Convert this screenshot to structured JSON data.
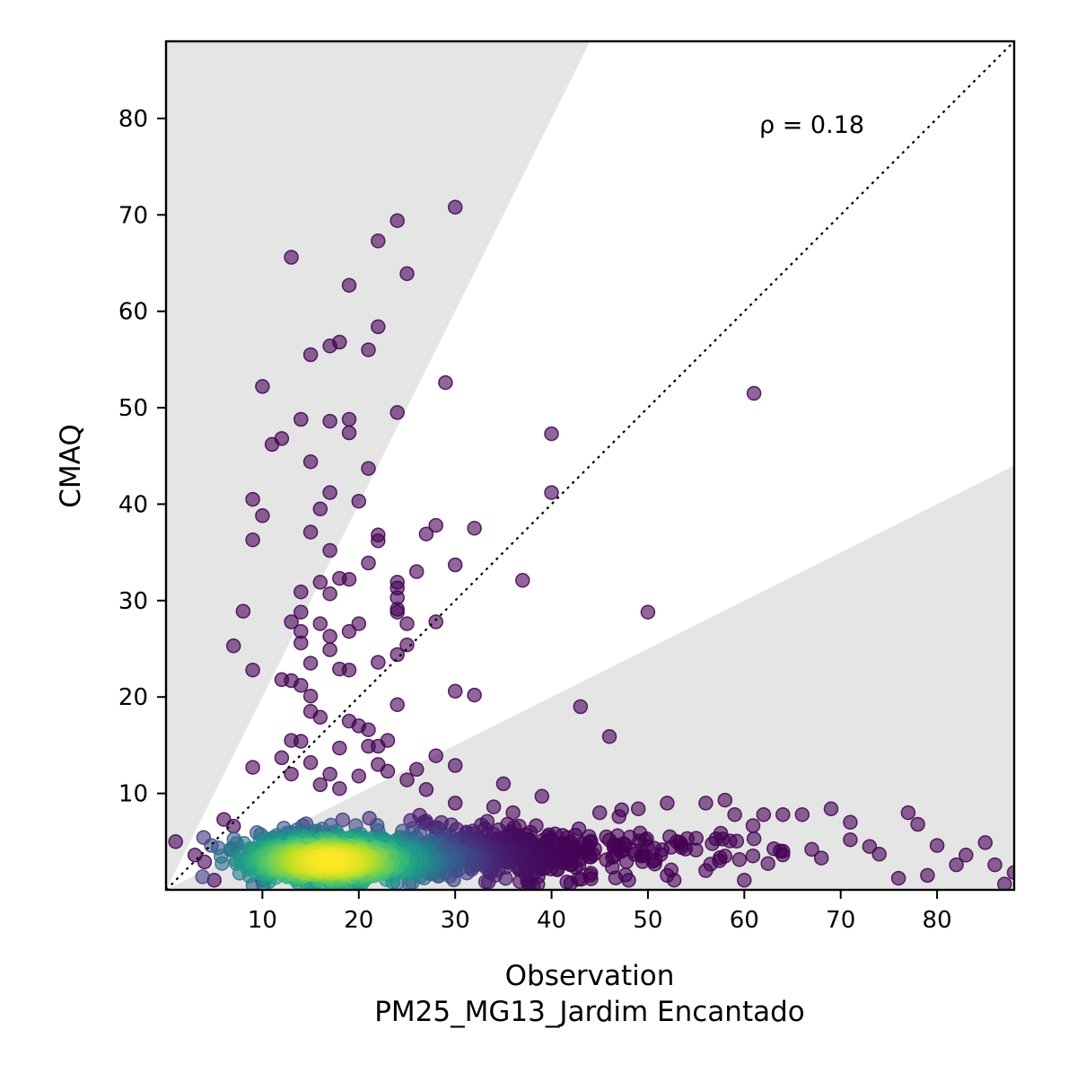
{
  "chart_data": {
    "type": "scatter",
    "xlabel": "Observation",
    "xlabel_sub": "PM25_MG13_Jardim Encantado",
    "ylabel": "CMAQ",
    "xlim": [
      0,
      88
    ],
    "ylim": [
      0,
      88
    ],
    "x_ticks": [
      10,
      20,
      30,
      40,
      50,
      60,
      70,
      80
    ],
    "y_ticks": [
      10,
      20,
      30,
      40,
      50,
      60,
      70,
      80
    ],
    "annotation": "ρ = 0.18",
    "reference_line": {
      "style": "dotted",
      "slope": 1
    },
    "shaded_band": {
      "outside_factor_2": true,
      "fill": "#e5e5e5"
    },
    "colormap": "viridis",
    "outlier_points": [
      [
        30,
        70.8
      ],
      [
        24,
        69.4
      ],
      [
        22,
        67.3
      ],
      [
        13,
        65.6
      ],
      [
        25,
        63.9
      ],
      [
        19,
        62.7
      ],
      [
        22,
        58.4
      ],
      [
        18,
        56.8
      ],
      [
        17,
        56.4
      ],
      [
        21,
        56
      ],
      [
        15,
        55.5
      ],
      [
        29,
        52.6
      ],
      [
        10,
        52.2
      ],
      [
        61,
        51.5
      ],
      [
        24,
        49.5
      ],
      [
        14,
        48.8
      ],
      [
        19,
        48.8
      ],
      [
        17,
        48.6
      ],
      [
        19,
        47.4
      ],
      [
        40,
        47.3
      ],
      [
        12,
        46.8
      ],
      [
        11,
        46.2
      ],
      [
        15,
        44.4
      ],
      [
        21,
        43.7
      ],
      [
        40,
        41.2
      ],
      [
        17,
        41.2
      ],
      [
        9,
        40.5
      ],
      [
        20,
        40.3
      ],
      [
        10,
        38.8
      ],
      [
        16,
        39.5
      ],
      [
        28,
        37.8
      ],
      [
        32,
        37.5
      ],
      [
        15,
        37.1
      ],
      [
        27,
        36.9
      ],
      [
        22,
        36.8
      ],
      [
        22,
        36.2
      ],
      [
        9,
        36.3
      ],
      [
        17,
        35.2
      ],
      [
        21,
        33.9
      ],
      [
        30,
        33.7
      ],
      [
        26,
        33
      ],
      [
        37,
        32.1
      ],
      [
        18,
        32.3
      ],
      [
        19,
        32.2
      ],
      [
        16,
        31.9
      ],
      [
        24,
        31.9
      ],
      [
        24,
        31.3
      ],
      [
        14,
        30.9
      ],
      [
        17,
        30.7
      ],
      [
        24,
        30.3
      ],
      [
        24,
        29.1
      ],
      [
        24,
        28.8
      ],
      [
        8,
        28.9
      ],
      [
        50,
        28.8
      ],
      [
        14,
        28.8
      ],
      [
        13,
        27.8
      ],
      [
        16,
        27.6
      ],
      [
        20,
        27.6
      ],
      [
        25,
        27.6
      ],
      [
        28,
        27.8
      ],
      [
        14,
        26.8
      ],
      [
        17,
        26.3
      ],
      [
        19,
        26.8
      ],
      [
        14,
        25.6
      ],
      [
        25,
        25.4
      ],
      [
        7,
        25.3
      ],
      [
        17,
        24.9
      ],
      [
        24,
        24.4
      ],
      [
        15,
        23.5
      ],
      [
        22,
        23.6
      ],
      [
        18,
        22.9
      ],
      [
        19,
        22.8
      ],
      [
        9,
        22.8
      ],
      [
        12,
        21.8
      ],
      [
        13,
        21.7
      ],
      [
        14,
        21.2
      ],
      [
        15,
        20.1
      ],
      [
        30,
        20.6
      ],
      [
        32,
        20.2
      ],
      [
        24,
        19.2
      ],
      [
        43,
        19
      ],
      [
        15,
        18.5
      ],
      [
        16,
        17.9
      ],
      [
        19,
        17.5
      ],
      [
        20,
        17
      ],
      [
        21,
        16.6
      ],
      [
        46,
        15.9
      ],
      [
        13,
        15.5
      ],
      [
        14,
        15.4
      ],
      [
        21,
        14.9
      ],
      [
        22,
        14.9
      ],
      [
        23,
        15.5
      ],
      [
        18,
        14.7
      ],
      [
        28,
        13.9
      ],
      [
        12,
        13.7
      ],
      [
        15,
        13.2
      ],
      [
        22,
        13
      ],
      [
        23,
        12.3
      ],
      [
        9,
        12.7
      ],
      [
        30,
        12.9
      ],
      [
        26,
        12.5
      ],
      [
        17,
        12
      ],
      [
        13,
        12
      ],
      [
        20,
        11.8
      ],
      [
        25,
        11.4
      ],
      [
        35,
        11
      ],
      [
        16,
        10.9
      ],
      [
        18,
        10.5
      ],
      [
        27,
        10.4
      ],
      [
        39,
        9.7
      ],
      [
        58,
        9.3
      ],
      [
        56,
        9
      ],
      [
        52,
        9
      ],
      [
        59,
        7.8
      ],
      [
        62,
        7.8
      ],
      [
        64,
        7.8
      ],
      [
        66,
        7.8
      ],
      [
        69,
        8.4
      ],
      [
        77,
        8
      ],
      [
        78,
        6.8
      ],
      [
        71,
        7
      ],
      [
        49,
        8.4
      ],
      [
        61,
        5.3
      ],
      [
        71,
        5.2
      ],
      [
        74,
        3.7
      ],
      [
        80,
        4.6
      ],
      [
        82,
        2.6
      ],
      [
        86,
        2.6
      ],
      [
        88,
        1.8
      ],
      [
        76,
        1.2
      ],
      [
        79,
        1.5
      ],
      [
        87,
        0.6
      ],
      [
        1,
        5
      ],
      [
        3,
        3.6
      ],
      [
        4,
        2.9
      ],
      [
        6,
        7.3
      ],
      [
        7,
        6.6
      ],
      [
        5,
        1
      ],
      [
        10,
        1
      ],
      [
        30,
        9
      ],
      [
        34,
        8.6
      ],
      [
        36,
        8
      ],
      [
        45,
        8
      ],
      [
        47,
        7.6
      ],
      [
        53,
        5
      ],
      [
        56,
        2
      ],
      [
        60,
        1
      ],
      [
        64,
        4
      ],
      [
        68,
        3.3
      ],
      [
        85,
        4.9
      ],
      [
        83,
        3.6
      ],
      [
        73,
        4.5
      ],
      [
        67,
        4.2
      ],
      [
        48,
        1
      ],
      [
        52,
        1.5
      ],
      [
        44,
        1.5
      ],
      [
        42,
        0.7
      ],
      [
        58,
        3.5
      ]
    ]
  }
}
